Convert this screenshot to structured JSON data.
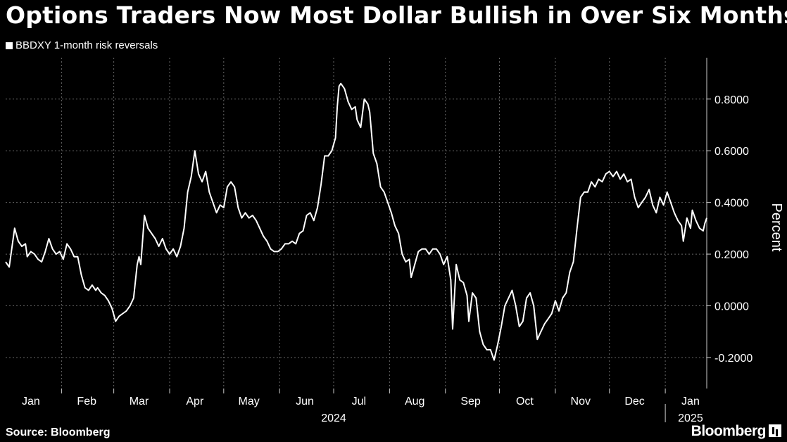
{
  "title": "Options Traders Now Most Dollar Bullish in Over Six Months",
  "source": "Source: Bloomberg",
  "brand": "Bloomberg",
  "colors": {
    "background": "#000000",
    "line": "#ffffff",
    "grid": "#666666",
    "text": "#ffffff"
  },
  "chart_data": {
    "type": "line",
    "title": "Options Traders Now Most Dollar Bullish in Over Six Months",
    "ylabel": "Percent",
    "xlabel": "",
    "ylim": [
      -0.32,
      0.96
    ],
    "yticks": [
      {
        "value": 0.8,
        "label": "0.8000"
      },
      {
        "value": 0.6,
        "label": "0.6000"
      },
      {
        "value": 0.4,
        "label": "0.4000"
      },
      {
        "value": 0.2,
        "label": "0.2000"
      },
      {
        "value": 0.0,
        "label": "0.0000"
      },
      {
        "value": -0.2,
        "label": "-0.2000"
      }
    ],
    "xticks": [
      {
        "label": "Jan",
        "date": "2024-01-15"
      },
      {
        "label": "Feb",
        "date": "2024-02-15"
      },
      {
        "label": "Mar",
        "date": "2024-03-15"
      },
      {
        "label": "Apr",
        "date": "2024-04-15"
      },
      {
        "label": "May",
        "date": "2024-05-15"
      },
      {
        "label": "Jun",
        "date": "2024-06-15"
      },
      {
        "label": "Jul",
        "date": "2024-07-15"
      },
      {
        "label": "Aug",
        "date": "2024-08-15"
      },
      {
        "label": "Sep",
        "date": "2024-09-15"
      },
      {
        "label": "Oct",
        "date": "2024-10-15"
      },
      {
        "label": "Nov",
        "date": "2024-11-15"
      },
      {
        "label": "Dec",
        "date": "2024-12-15"
      },
      {
        "label": "Jan",
        "date": "2025-01-15"
      }
    ],
    "year_labels": [
      {
        "label": "2024",
        "date": "2024-07-01"
      },
      {
        "label": "2025",
        "date": "2025-01-15"
      }
    ],
    "xlim": [
      "2024-01-01",
      "2025-01-24"
    ],
    "grid": true,
    "legend": "top-left",
    "series": [
      {
        "name": "BBDXY 1-month risk reversals",
        "color": "#ffffff",
        "points": [
          [
            "2024-01-01",
            0.17
          ],
          [
            "2024-01-03",
            0.15
          ],
          [
            "2024-01-05",
            0.25
          ],
          [
            "2024-01-06",
            0.3
          ],
          [
            "2024-01-08",
            0.25
          ],
          [
            "2024-01-10",
            0.23
          ],
          [
            "2024-01-12",
            0.24
          ],
          [
            "2024-01-13",
            0.19
          ],
          [
            "2024-01-15",
            0.21
          ],
          [
            "2024-01-17",
            0.2
          ],
          [
            "2024-01-19",
            0.18
          ],
          [
            "2024-01-21",
            0.17
          ],
          [
            "2024-01-23",
            0.21
          ],
          [
            "2024-01-25",
            0.26
          ],
          [
            "2024-01-27",
            0.22
          ],
          [
            "2024-01-29",
            0.2
          ],
          [
            "2024-01-31",
            0.21
          ],
          [
            "2024-02-02",
            0.18
          ],
          [
            "2024-02-04",
            0.24
          ],
          [
            "2024-02-06",
            0.22
          ],
          [
            "2024-02-08",
            0.19
          ],
          [
            "2024-02-10",
            0.19
          ],
          [
            "2024-02-12",
            0.12
          ],
          [
            "2024-02-14",
            0.07
          ],
          [
            "2024-02-16",
            0.06
          ],
          [
            "2024-02-18",
            0.08
          ],
          [
            "2024-02-20",
            0.06
          ],
          [
            "2024-02-21",
            0.07
          ],
          [
            "2024-02-23",
            0.05
          ],
          [
            "2024-02-25",
            0.04
          ],
          [
            "2024-02-27",
            0.02
          ],
          [
            "2024-02-29",
            -0.01
          ],
          [
            "2024-03-02",
            -0.06
          ],
          [
            "2024-03-04",
            -0.04
          ],
          [
            "2024-03-06",
            -0.03
          ],
          [
            "2024-03-08",
            -0.02
          ],
          [
            "2024-03-10",
            0.0
          ],
          [
            "2024-03-12",
            0.03
          ],
          [
            "2024-03-14",
            0.16
          ],
          [
            "2024-03-15",
            0.19
          ],
          [
            "2024-03-16",
            0.16
          ],
          [
            "2024-03-18",
            0.35
          ],
          [
            "2024-03-20",
            0.3
          ],
          [
            "2024-03-22",
            0.28
          ],
          [
            "2024-03-24",
            0.26
          ],
          [
            "2024-03-26",
            0.23
          ],
          [
            "2024-03-28",
            0.26
          ],
          [
            "2024-03-30",
            0.22
          ],
          [
            "2024-04-01",
            0.2
          ],
          [
            "2024-04-03",
            0.22
          ],
          [
            "2024-04-05",
            0.19
          ],
          [
            "2024-04-07",
            0.23
          ],
          [
            "2024-04-09",
            0.3
          ],
          [
            "2024-04-11",
            0.44
          ],
          [
            "2024-04-13",
            0.5
          ],
          [
            "2024-04-15",
            0.6
          ],
          [
            "2024-04-17",
            0.51
          ],
          [
            "2024-04-19",
            0.48
          ],
          [
            "2024-04-21",
            0.52
          ],
          [
            "2024-04-23",
            0.44
          ],
          [
            "2024-04-25",
            0.4
          ],
          [
            "2024-04-27",
            0.36
          ],
          [
            "2024-04-29",
            0.39
          ],
          [
            "2024-05-01",
            0.38
          ],
          [
            "2024-05-03",
            0.46
          ],
          [
            "2024-05-05",
            0.48
          ],
          [
            "2024-05-07",
            0.46
          ],
          [
            "2024-05-09",
            0.38
          ],
          [
            "2024-05-11",
            0.34
          ],
          [
            "2024-05-13",
            0.36
          ],
          [
            "2024-05-15",
            0.34
          ],
          [
            "2024-05-17",
            0.35
          ],
          [
            "2024-05-19",
            0.33
          ],
          [
            "2024-05-21",
            0.3
          ],
          [
            "2024-05-23",
            0.27
          ],
          [
            "2024-05-25",
            0.25
          ],
          [
            "2024-05-27",
            0.22
          ],
          [
            "2024-05-29",
            0.21
          ],
          [
            "2024-05-31",
            0.21
          ],
          [
            "2024-06-02",
            0.22
          ],
          [
            "2024-06-04",
            0.24
          ],
          [
            "2024-06-06",
            0.24
          ],
          [
            "2024-06-08",
            0.25
          ],
          [
            "2024-06-10",
            0.24
          ],
          [
            "2024-06-12",
            0.28
          ],
          [
            "2024-06-14",
            0.29
          ],
          [
            "2024-06-16",
            0.35
          ],
          [
            "2024-06-18",
            0.36
          ],
          [
            "2024-06-20",
            0.33
          ],
          [
            "2024-06-22",
            0.38
          ],
          [
            "2024-06-24",
            0.47
          ],
          [
            "2024-06-26",
            0.58
          ],
          [
            "2024-06-28",
            0.58
          ],
          [
            "2024-06-30",
            0.6
          ],
          [
            "2024-07-02",
            0.65
          ],
          [
            "2024-07-03",
            0.77
          ],
          [
            "2024-07-04",
            0.85
          ],
          [
            "2024-07-05",
            0.86
          ],
          [
            "2024-07-07",
            0.84
          ],
          [
            "2024-07-09",
            0.79
          ],
          [
            "2024-07-11",
            0.76
          ],
          [
            "2024-07-13",
            0.77
          ],
          [
            "2024-07-14",
            0.72
          ],
          [
            "2024-07-16",
            0.69
          ],
          [
            "2024-07-18",
            0.8
          ],
          [
            "2024-07-20",
            0.78
          ],
          [
            "2024-07-21",
            0.75
          ],
          [
            "2024-07-23",
            0.59
          ],
          [
            "2024-07-25",
            0.55
          ],
          [
            "2024-07-27",
            0.46
          ],
          [
            "2024-07-29",
            0.44
          ],
          [
            "2024-07-31",
            0.4
          ],
          [
            "2024-08-02",
            0.36
          ],
          [
            "2024-08-04",
            0.31
          ],
          [
            "2024-08-06",
            0.28
          ],
          [
            "2024-08-08",
            0.2
          ],
          [
            "2024-08-10",
            0.17
          ],
          [
            "2024-08-12",
            0.18
          ],
          [
            "2024-08-13",
            0.11
          ],
          [
            "2024-08-15",
            0.16
          ],
          [
            "2024-08-17",
            0.21
          ],
          [
            "2024-08-19",
            0.22
          ],
          [
            "2024-08-21",
            0.22
          ],
          [
            "2024-08-23",
            0.2
          ],
          [
            "2024-08-25",
            0.22
          ],
          [
            "2024-08-27",
            0.22
          ],
          [
            "2024-08-29",
            0.2
          ],
          [
            "2024-08-31",
            0.16
          ],
          [
            "2024-09-02",
            0.19
          ],
          [
            "2024-09-04",
            0.1
          ],
          [
            "2024-09-05",
            -0.09
          ],
          [
            "2024-09-07",
            0.16
          ],
          [
            "2024-09-09",
            0.1
          ],
          [
            "2024-09-11",
            0.09
          ],
          [
            "2024-09-13",
            0.04
          ],
          [
            "2024-09-14",
            -0.06
          ],
          [
            "2024-09-16",
            0.05
          ],
          [
            "2024-09-18",
            0.03
          ],
          [
            "2024-09-20",
            -0.1
          ],
          [
            "2024-09-22",
            -0.15
          ],
          [
            "2024-09-24",
            -0.17
          ],
          [
            "2024-09-26",
            -0.17
          ],
          [
            "2024-09-28",
            -0.21
          ],
          [
            "2024-09-30",
            -0.15
          ],
          [
            "2024-10-02",
            -0.08
          ],
          [
            "2024-10-04",
            0.0
          ],
          [
            "2024-10-06",
            0.03
          ],
          [
            "2024-10-08",
            0.06
          ],
          [
            "2024-10-10",
            0.0
          ],
          [
            "2024-10-12",
            -0.08
          ],
          [
            "2024-10-14",
            -0.06
          ],
          [
            "2024-10-16",
            0.03
          ],
          [
            "2024-10-18",
            0.05
          ],
          [
            "2024-10-20",
            0.0
          ],
          [
            "2024-10-22",
            -0.13
          ],
          [
            "2024-10-24",
            -0.1
          ],
          [
            "2024-10-26",
            -0.07
          ],
          [
            "2024-10-28",
            -0.05
          ],
          [
            "2024-10-30",
            -0.03
          ],
          [
            "2024-11-01",
            0.02
          ],
          [
            "2024-11-03",
            -0.02
          ],
          [
            "2024-11-05",
            0.03
          ],
          [
            "2024-11-07",
            0.05
          ],
          [
            "2024-11-09",
            0.13
          ],
          [
            "2024-11-11",
            0.17
          ],
          [
            "2024-11-13",
            0.3
          ],
          [
            "2024-11-15",
            0.42
          ],
          [
            "2024-11-17",
            0.44
          ],
          [
            "2024-11-19",
            0.44
          ],
          [
            "2024-11-21",
            0.48
          ],
          [
            "2024-11-23",
            0.46
          ],
          [
            "2024-11-25",
            0.49
          ],
          [
            "2024-11-27",
            0.48
          ],
          [
            "2024-11-29",
            0.51
          ],
          [
            "2024-12-01",
            0.52
          ],
          [
            "2024-12-03",
            0.5
          ],
          [
            "2024-12-05",
            0.52
          ],
          [
            "2024-12-07",
            0.49
          ],
          [
            "2024-12-09",
            0.51
          ],
          [
            "2024-12-11",
            0.48
          ],
          [
            "2024-12-13",
            0.49
          ],
          [
            "2024-12-15",
            0.42
          ],
          [
            "2024-12-17",
            0.38
          ],
          [
            "2024-12-19",
            0.4
          ],
          [
            "2024-12-21",
            0.42
          ],
          [
            "2024-12-23",
            0.45
          ],
          [
            "2024-12-25",
            0.39
          ],
          [
            "2024-12-27",
            0.36
          ],
          [
            "2024-12-29",
            0.42
          ],
          [
            "2024-12-31",
            0.39
          ],
          [
            "2025-01-02",
            0.44
          ],
          [
            "2025-01-04",
            0.4
          ],
          [
            "2025-01-06",
            0.36
          ],
          [
            "2025-01-08",
            0.33
          ],
          [
            "2025-01-10",
            0.31
          ],
          [
            "2025-01-11",
            0.25
          ],
          [
            "2025-01-13",
            0.34
          ],
          [
            "2025-01-15",
            0.3
          ],
          [
            "2025-01-16",
            0.37
          ],
          [
            "2025-01-18",
            0.33
          ],
          [
            "2025-01-20",
            0.3
          ],
          [
            "2025-01-22",
            0.29
          ],
          [
            "2025-01-23",
            0.32
          ],
          [
            "2025-01-24",
            0.34
          ]
        ]
      }
    ]
  }
}
